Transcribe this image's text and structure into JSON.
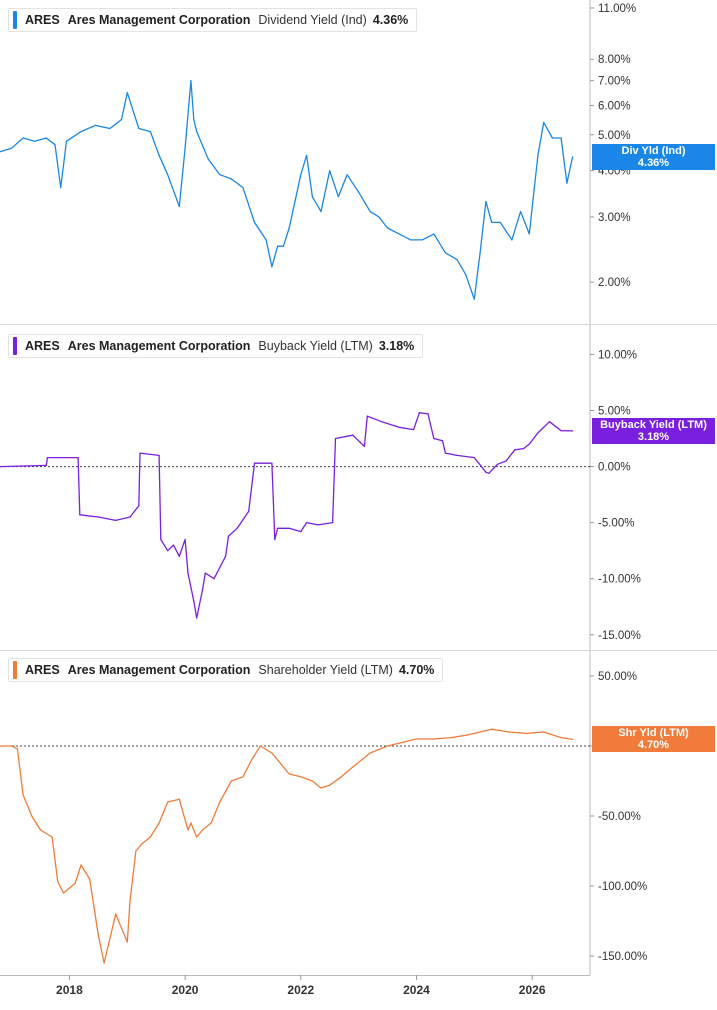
{
  "chart_data": [
    {
      "type": "line",
      "ticker": "ARES",
      "company": "Ares Management Corporation",
      "metric": "Dividend Yield (Ind)",
      "latest_value": "4.36%",
      "tag_label": "Div Yld (Ind)",
      "tag_value": "4.36%",
      "color": "#1a87e8",
      "scale": "log",
      "ylim": [
        1.6,
        11.0
      ],
      "yticks": [
        "11.00%",
        "8.00%",
        "7.00%",
        "6.00%",
        "5.00%",
        "4.00%",
        "3.00%",
        "2.00%"
      ],
      "ytick_values": [
        11,
        8,
        7,
        6,
        5,
        4,
        3,
        2
      ],
      "x": [
        2016.8,
        2017.0,
        2017.2,
        2017.4,
        2017.6,
        2017.75,
        2017.85,
        2017.95,
        2018.2,
        2018.45,
        2018.7,
        2018.9,
        2019.0,
        2019.2,
        2019.4,
        2019.55,
        2019.7,
        2019.9,
        2020.0,
        2020.1,
        2020.15,
        2020.2,
        2020.4,
        2020.6,
        2020.8,
        2021.0,
        2021.2,
        2021.4,
        2021.5,
        2021.6,
        2021.7,
        2021.8,
        2022.0,
        2022.1,
        2022.2,
        2022.35,
        2022.5,
        2022.65,
        2022.8,
        2023.0,
        2023.2,
        2023.35,
        2023.5,
        2023.7,
        2023.9,
        2024.1,
        2024.3,
        2024.5,
        2024.7,
        2024.85,
        2025.0,
        2025.1,
        2025.2,
        2025.3,
        2025.45,
        2025.65,
        2025.8,
        2025.95,
        2026.1,
        2026.2,
        2026.35,
        2026.5,
        2026.6,
        2026.7
      ],
      "y": [
        4.5,
        4.6,
        4.9,
        4.8,
        4.9,
        4.7,
        3.6,
        4.8,
        5.1,
        5.3,
        5.2,
        5.5,
        6.5,
        5.2,
        5.1,
        4.4,
        3.9,
        3.2,
        4.6,
        7.0,
        5.5,
        5.1,
        4.3,
        3.9,
        3.8,
        3.6,
        2.9,
        2.6,
        2.2,
        2.5,
        2.5,
        2.8,
        3.9,
        4.4,
        3.4,
        3.1,
        4.0,
        3.4,
        3.9,
        3.5,
        3.1,
        3.0,
        2.8,
        2.7,
        2.6,
        2.6,
        2.7,
        2.4,
        2.3,
        2.1,
        1.8,
        2.4,
        3.3,
        2.9,
        2.9,
        2.6,
        3.1,
        2.7,
        4.4,
        5.4,
        4.9,
        4.9,
        3.7,
        4.36
      ]
    },
    {
      "type": "line",
      "ticker": "ARES",
      "company": "Ares Management Corporation",
      "metric": "Buyback Yield (LTM)",
      "latest_value": "3.18%",
      "tag_label": "Buyback Yield (LTM)",
      "tag_value": "3.18%",
      "color": "#7a1fe0",
      "scale": "linear",
      "ylim": [
        -16,
        12
      ],
      "yticks": [
        "10.00%",
        "5.00%",
        "0.00%",
        "-5.00%",
        "-10.00%",
        "-15.00%"
      ],
      "ytick_values": [
        10,
        5,
        0,
        -5,
        -10,
        -15
      ],
      "zero_line": true,
      "x": [
        2016.8,
        2017.6,
        2017.62,
        2018.15,
        2018.18,
        2018.5,
        2018.8,
        2019.05,
        2019.2,
        2019.22,
        2019.55,
        2019.58,
        2019.7,
        2019.8,
        2019.9,
        2020.0,
        2020.05,
        2020.15,
        2020.2,
        2020.3,
        2020.35,
        2020.5,
        2020.7,
        2020.75,
        2020.9,
        2021.1,
        2021.2,
        2021.25,
        2021.35,
        2021.5,
        2021.55,
        2021.6,
        2021.8,
        2022.0,
        2022.1,
        2022.3,
        2022.55,
        2022.6,
        2022.9,
        2023.1,
        2023.15,
        2023.4,
        2023.7,
        2023.95,
        2024.05,
        2024.2,
        2024.3,
        2024.45,
        2024.5,
        2024.7,
        2025.0,
        2025.2,
        2025.25,
        2025.4,
        2025.55,
        2025.7,
        2025.85,
        2025.95,
        2026.1,
        2026.3,
        2026.5,
        2026.7
      ],
      "y": [
        0.0,
        0.1,
        0.8,
        0.8,
        -4.3,
        -4.5,
        -4.8,
        -4.5,
        -3.5,
        1.2,
        1.0,
        -6.5,
        -7.5,
        -7.0,
        -8.0,
        -6.5,
        -9.5,
        -12.0,
        -13.5,
        -11.0,
        -9.5,
        -10.0,
        -8.0,
        -6.2,
        -5.5,
        -4.0,
        0.3,
        0.3,
        0.3,
        0.3,
        -6.5,
        -5.5,
        -5.5,
        -5.8,
        -5.0,
        -5.2,
        -5.0,
        2.5,
        2.8,
        1.8,
        4.5,
        4.0,
        3.5,
        3.3,
        4.8,
        4.7,
        2.5,
        2.3,
        1.2,
        1.0,
        0.8,
        -0.5,
        -0.6,
        0.2,
        0.5,
        1.5,
        1.6,
        2.0,
        3.0,
        4.0,
        3.2,
        3.18
      ]
    },
    {
      "type": "line",
      "ticker": "ARES",
      "company": "Ares Management Corporation",
      "metric": "Shareholder Yield (LTM)",
      "latest_value": "4.70%",
      "tag_label": "Shr Yld (LTM)",
      "tag_value": "4.70%",
      "color": "#f07b3a",
      "scale": "linear",
      "ylim": [
        -160,
        65
      ],
      "yticks": [
        "50.00%",
        "0.00%",
        "-50.00%",
        "-100.00%",
        "-150.00%"
      ],
      "ytick_values": [
        50,
        0,
        -50,
        -100,
        -150
      ],
      "zero_line": true,
      "x": [
        2016.8,
        2017.0,
        2017.1,
        2017.2,
        2017.35,
        2017.5,
        2017.7,
        2017.8,
        2017.9,
        2018.1,
        2018.2,
        2018.35,
        2018.5,
        2018.6,
        2018.8,
        2018.9,
        2019.0,
        2019.05,
        2019.15,
        2019.25,
        2019.4,
        2019.55,
        2019.7,
        2019.9,
        2020.05,
        2020.1,
        2020.2,
        2020.3,
        2020.45,
        2020.6,
        2020.8,
        2021.0,
        2021.15,
        2021.3,
        2021.5,
        2021.8,
        2022.0,
        2022.2,
        2022.35,
        2022.5,
        2022.7,
        2022.9,
        2023.2,
        2023.5,
        2023.8,
        2024.0,
        2024.3,
        2024.6,
        2024.9,
        2025.1,
        2025.3,
        2025.6,
        2025.9,
        2026.2,
        2026.5,
        2026.7
      ],
      "y": [
        0,
        0,
        -2,
        -35,
        -50,
        -60,
        -65,
        -97,
        -105,
        -98,
        -85,
        -95,
        -135,
        -155,
        -120,
        -130,
        -140,
        -110,
        -75,
        -70,
        -65,
        -55,
        -40,
        -38,
        -60,
        -55,
        -65,
        -60,
        -55,
        -40,
        -25,
        -22,
        -10,
        0,
        -5,
        -20,
        -22,
        -25,
        -30,
        -28,
        -22,
        -15,
        -5,
        0,
        3,
        5,
        5,
        6,
        8,
        10,
        12,
        10,
        9,
        10,
        6,
        4.7
      ]
    }
  ],
  "x_axis": {
    "range": [
      2016.8,
      2027.0
    ],
    "ticks": [
      "2018",
      "2020",
      "2022",
      "2024",
      "2026"
    ],
    "tick_values": [
      2018,
      2020,
      2022,
      2024,
      2026
    ]
  }
}
